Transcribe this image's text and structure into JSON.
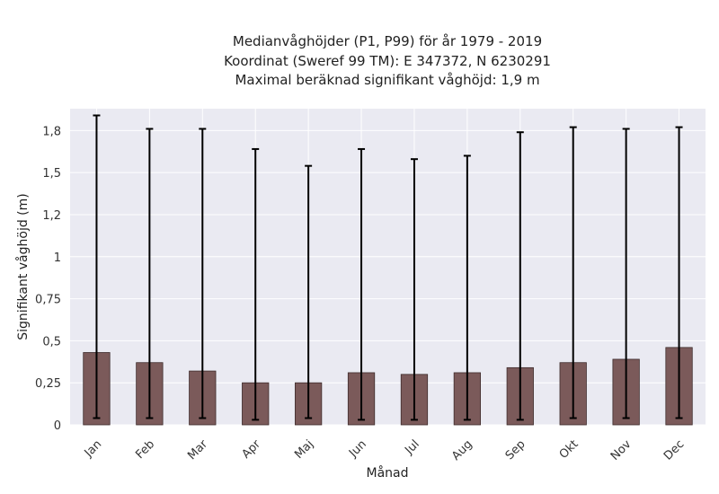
{
  "chart_data": {
    "type": "bar",
    "title_lines": [
      "Medianvåghöjder (P1, P99) för år 1979 - 2019",
      "Koordinat (Sweref 99 TM): E 347372, N 6230291",
      "Maximal beräknad signifikant våghöjd: 1,9 m"
    ],
    "xlabel": "Månad",
    "ylabel": "Signifikant våghöjd (m)",
    "categories": [
      "Jan",
      "Feb",
      "Mar",
      "Apr",
      "Maj",
      "Jun",
      "Jul",
      "Aug",
      "Sep",
      "Okt",
      "Nov",
      "Dec"
    ],
    "series": [
      {
        "values": [
          0.43,
          0.37,
          0.32,
          0.25,
          0.25,
          0.31,
          0.3,
          0.31,
          0.34,
          0.37,
          0.39,
          0.46
        ],
        "p1": [
          0.04,
          0.04,
          0.04,
          0.03,
          0.04,
          0.03,
          0.03,
          0.03,
          0.03,
          0.04,
          0.04,
          0.04
        ],
        "p99": [
          1.84,
          1.76,
          1.76,
          1.64,
          1.54,
          1.64,
          1.58,
          1.6,
          1.74,
          1.77,
          1.76,
          1.77
        ]
      }
    ],
    "ylim": [
      0,
      1.88
    ],
    "yticks": [
      0,
      0.25,
      0.5,
      0.75,
      1,
      1.25,
      1.5,
      1.75
    ],
    "ytick_labels": [
      "0",
      "0,25",
      "0,5",
      "0,75",
      "1",
      "1,2",
      "1,5",
      "1,8"
    ],
    "grid": true,
    "colors": {
      "bar": "#7b5a5a",
      "bar_edge": "#3e2c2c",
      "error": "#000000",
      "plot_bg": "#eaeaf2",
      "grid": "#ffffff"
    }
  }
}
